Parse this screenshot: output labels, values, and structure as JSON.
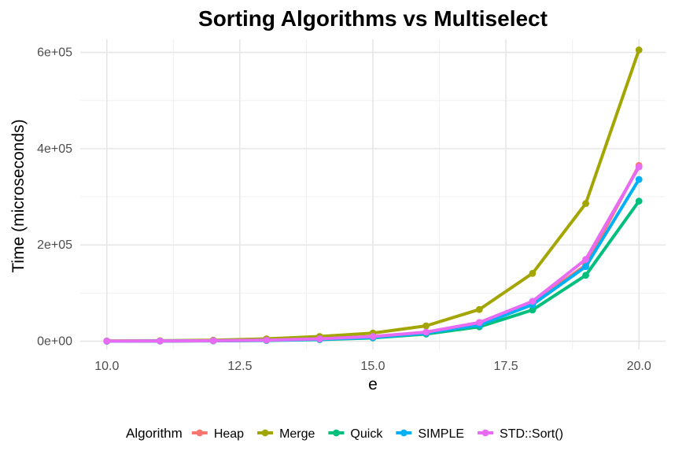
{
  "chart_data": {
    "type": "line",
    "title": "Sorting Algorithms vs Multiselect",
    "xlabel": "e",
    "ylabel": "Time (microseconds)",
    "xlim": [
      9.5,
      20.5
    ],
    "ylim": [
      -17000,
      627000
    ],
    "x_ticks": [
      10.0,
      12.5,
      15.0,
      17.5,
      20.0
    ],
    "x_tick_labels": [
      "10.0",
      "12.5",
      "15.0",
      "17.5",
      "20.0"
    ],
    "x_minor_ticks": [
      11.25,
      13.75,
      16.25,
      18.75
    ],
    "y_ticks": [
      0,
      200000,
      400000,
      600000
    ],
    "y_tick_labels": [
      "0e+00",
      "2e+05",
      "4e+05",
      "6e+05"
    ],
    "y_minor_ticks": [
      100000,
      300000,
      500000
    ],
    "grid": true,
    "legend_title": "Algorithm",
    "legend_position": "bottom",
    "x": [
      10,
      11,
      12,
      13,
      14,
      15,
      16,
      17,
      18,
      19,
      20
    ],
    "series": [
      {
        "name": "Heap",
        "color": "#F8766D",
        "values": [
          300,
          600,
          1200,
          2500,
          5000,
          9000,
          18000,
          36000,
          80000,
          158000,
          365000
        ]
      },
      {
        "name": "Merge",
        "color": "#A3A500",
        "values": [
          500,
          1200,
          2300,
          5000,
          10000,
          17000,
          32000,
          66000,
          141000,
          286000,
          605000
        ]
      },
      {
        "name": "Quick",
        "color": "#00BF7D",
        "values": [
          200,
          400,
          800,
          1600,
          3500,
          7000,
          15000,
          30000,
          65000,
          137000,
          291000
        ]
      },
      {
        "name": "SIMPLE",
        "color": "#00B0F6",
        "values": [
          200,
          500,
          1000,
          2000,
          4000,
          8000,
          17000,
          34000,
          76000,
          155000,
          336000
        ]
      },
      {
        "name": "STD::Sort()",
        "color": "#E76BF3",
        "values": [
          300,
          600,
          1200,
          2400,
          5000,
          10000,
          19000,
          39000,
          83000,
          170000,
          362000
        ]
      }
    ]
  }
}
